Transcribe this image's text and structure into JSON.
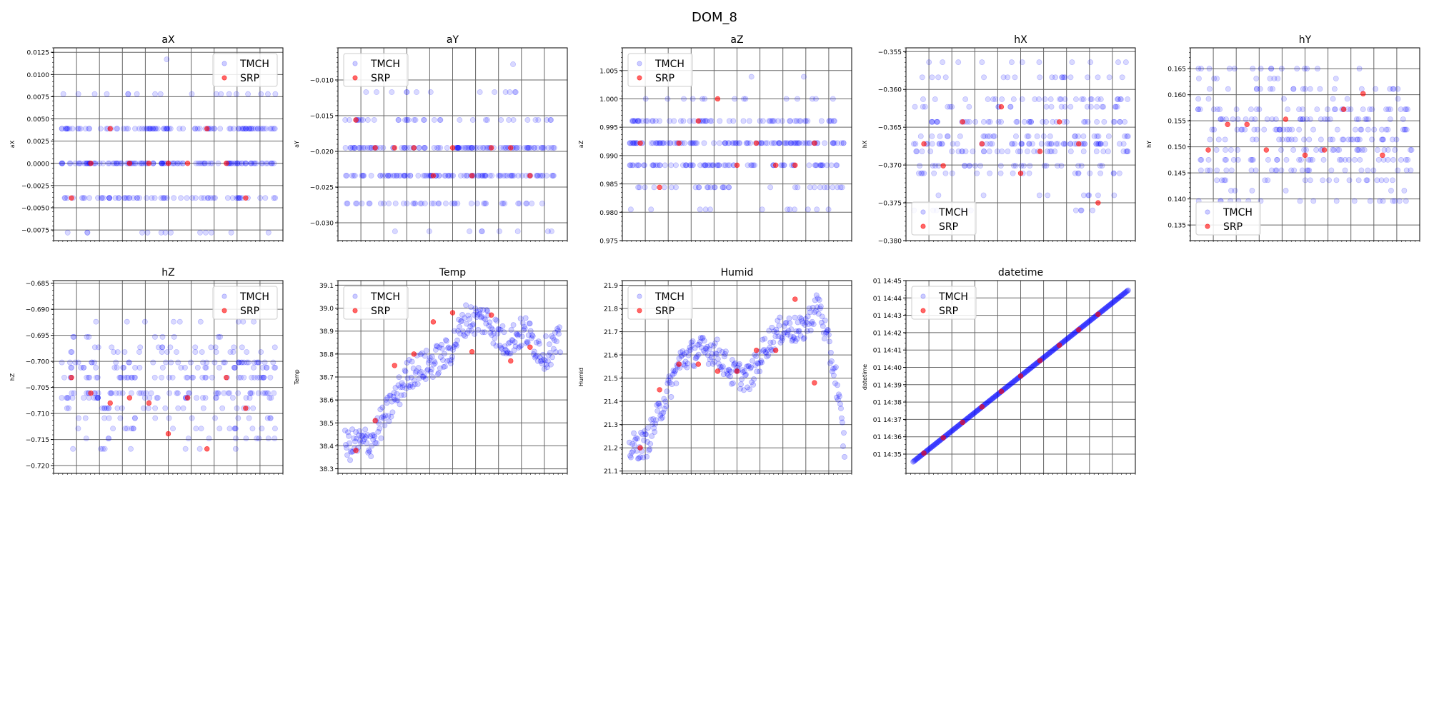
{
  "figure": {
    "title": "DOM_8",
    "legend_labels": [
      "TMCH",
      "SRP"
    ],
    "colors": {
      "tmch": "#0000ff",
      "srp": "#ff0000",
      "grid": "#666666",
      "axis": "#000000"
    }
  },
  "chart_data": [
    {
      "type": "scatter",
      "title": "aX",
      "xlabel": "",
      "ylabel": "aX",
      "ylim": [
        -0.0087,
        0.013
      ],
      "yticks": [
        "0.0125",
        "0.0100",
        "0.0075",
        "0.0050",
        "0.0025",
        "0.0000",
        "−0.0025",
        "−0.0050",
        "−0.0075"
      ],
      "ytick_values": [
        0.0125,
        0.01,
        0.0075,
        0.005,
        0.0025,
        0.0,
        -0.0025,
        -0.005,
        -0.0075
      ],
      "legend": "upper right",
      "grid": true,
      "series": [
        {
          "name": "TMCH",
          "levels": [
            0.0,
            0.0039,
            -0.0039,
            0.0078,
            -0.0078,
            0.0117
          ],
          "weights": [
            12,
            8,
            6,
            2,
            1,
            0.2
          ]
        },
        {
          "name": "SRP",
          "y": [
            -0.0039,
            0.0,
            0.0039,
            0.0,
            0.0,
            0.0,
            0.0,
            0.0039,
            0.0,
            -0.0039
          ]
        }
      ]
    },
    {
      "type": "scatter",
      "title": "aY",
      "xlabel": "",
      "ylabel": "aY",
      "ylim": [
        -0.0325,
        -0.0055
      ],
      "yticks": [
        "−0.010",
        "−0.015",
        "−0.020",
        "−0.025",
        "−0.030"
      ],
      "ytick_values": [
        -0.01,
        -0.015,
        -0.02,
        -0.025,
        -0.03
      ],
      "legend": "upper left",
      "grid": true,
      "series": [
        {
          "name": "TMCH",
          "levels": [
            -0.0195,
            -0.0234,
            -0.0156,
            -0.0273,
            -0.0117,
            -0.0312,
            -0.0078
          ],
          "weights": [
            10,
            10,
            4,
            4,
            1,
            1,
            0.2
          ]
        },
        {
          "name": "SRP",
          "y": [
            -0.0156,
            -0.0195,
            -0.0195,
            -0.0195,
            -0.0234,
            -0.0195,
            -0.0234,
            -0.0195,
            -0.0195,
            -0.0234
          ]
        }
      ]
    },
    {
      "type": "scatter",
      "title": "aZ",
      "xlabel": "",
      "ylabel": "aZ",
      "ylim": [
        0.975,
        1.009
      ],
      "yticks": [
        "1.005",
        "1.000",
        "0.995",
        "0.990",
        "0.985",
        "0.980",
        "0.975"
      ],
      "ytick_values": [
        1.005,
        1.0,
        0.995,
        0.99,
        0.985,
        0.98,
        0.975
      ],
      "legend": "upper left",
      "grid": true,
      "series": [
        {
          "name": "TMCH",
          "levels": [
            0.9922,
            0.9883,
            0.9961,
            0.9844,
            1.0,
            0.9805,
            1.0039
          ],
          "weights": [
            10,
            8,
            5,
            3,
            1,
            1,
            0.2
          ]
        },
        {
          "name": "SRP",
          "y": [
            0.9922,
            0.9844,
            0.9922,
            0.9961,
            1.0,
            0.9883,
            0.9922,
            0.9883,
            0.9883,
            0.9922
          ]
        }
      ]
    },
    {
      "type": "scatter",
      "title": "hX",
      "xlabel": "",
      "ylabel": "hX",
      "ylim": [
        -0.38,
        -0.3545
      ],
      "yticks": [
        "−0.355",
        "−0.360",
        "−0.365",
        "−0.370",
        "−0.375",
        "−0.380"
      ],
      "ytick_values": [
        -0.355,
        -0.36,
        -0.365,
        -0.37,
        -0.375,
        -0.38
      ],
      "legend": "lower left",
      "grid": true,
      "series": [
        {
          "name": "TMCH",
          "levels": [
            -0.3672,
            -0.3643,
            -0.3701,
            -0.3613,
            -0.3682,
            -0.3623,
            -0.3662,
            -0.3711,
            -0.3584,
            -0.374,
            -0.3564,
            -0.376
          ],
          "weights": [
            4,
            4,
            3,
            3,
            3,
            3,
            3,
            2,
            2,
            1,
            1,
            1
          ]
        },
        {
          "name": "SRP",
          "y": [
            -0.3672,
            -0.3701,
            -0.3643,
            -0.3672,
            -0.3623,
            -0.3711,
            -0.3682,
            -0.3643,
            -0.3672,
            -0.375
          ]
        }
      ]
    },
    {
      "type": "scatter",
      "title": "hY",
      "xlabel": "",
      "ylabel": "hY",
      "ylim": [
        0.132,
        0.169
      ],
      "yticks": [
        "0.165",
        "0.160",
        "0.155",
        "0.150",
        "0.145",
        "0.140",
        "0.135"
      ],
      "ytick_values": [
        0.165,
        0.16,
        0.155,
        0.15,
        0.145,
        0.14,
        0.135
      ],
      "legend": "lower left",
      "grid": true,
      "series": [
        {
          "name": "TMCH",
          "levels": [
            0.1514,
            0.1494,
            0.1533,
            0.1553,
            0.1475,
            0.1572,
            0.1455,
            0.1592,
            0.1436,
            0.1611,
            0.1416,
            0.1631,
            0.1396,
            0.165
          ],
          "weights": [
            4,
            4,
            4,
            3,
            3,
            3,
            2,
            2,
            2,
            2,
            1,
            1,
            1,
            1
          ]
        },
        {
          "name": "SRP",
          "y": [
            0.1494,
            0.1543,
            0.1543,
            0.1494,
            0.1553,
            0.1484,
            0.1494,
            0.1572,
            0.1602,
            0.1484
          ]
        }
      ]
    },
    {
      "type": "scatter",
      "title": "hZ",
      "xlabel": "",
      "ylabel": "hZ",
      "ylim": [
        -0.7215,
        -0.6845
      ],
      "yticks": [
        "−0.685",
        "−0.690",
        "−0.695",
        "−0.700",
        "−0.705",
        "−0.710",
        "−0.715",
        "−0.720"
      ],
      "ytick_values": [
        -0.685,
        -0.69,
        -0.695,
        -0.7,
        -0.705,
        -0.71,
        -0.715,
        -0.72
      ],
      "legend": "upper right",
      "grid": true,
      "series": [
        {
          "name": "TMCH",
          "levels": [
            -0.7031,
            -0.7061,
            -0.7002,
            -0.709,
            -0.7012,
            -0.707,
            -0.6982,
            -0.7109,
            -0.6973,
            -0.7129,
            -0.6953,
            -0.7148,
            -0.6924,
            -0.7168
          ],
          "weights": [
            4,
            4,
            3,
            3,
            3,
            3,
            2,
            2,
            2,
            2,
            1,
            1,
            1,
            1
          ]
        },
        {
          "name": "SRP",
          "y": [
            -0.7031,
            -0.7061,
            -0.708,
            -0.707,
            -0.708,
            -0.7139,
            -0.707,
            -0.7168,
            -0.7031,
            -0.709
          ]
        }
      ]
    },
    {
      "type": "scatter",
      "title": "Temp",
      "xlabel": "",
      "ylabel": "Temp",
      "ylim": [
        38.28,
        39.12
      ],
      "yticks": [
        "39.1",
        "39.0",
        "38.9",
        "38.8",
        "38.7",
        "38.6",
        "38.5",
        "38.4",
        "38.3"
      ],
      "ytick_values": [
        39.1,
        39.0,
        38.9,
        38.8,
        38.7,
        38.6,
        38.5,
        38.4,
        38.3
      ],
      "legend": "upper left",
      "grid": true,
      "series": [
        {
          "name": "TMCH",
          "x": [
            0,
            12,
            20,
            30,
            38,
            48,
            56,
            66,
            74,
            84,
            92,
            100
          ],
          "y": [
            38.4,
            38.42,
            38.55,
            38.72,
            38.75,
            38.8,
            38.95,
            38.95,
            38.85,
            38.9,
            38.8,
            38.85
          ],
          "spread": 0.07
        },
        {
          "name": "SRP",
          "x": [
            5,
            14,
            23,
            32,
            41,
            50,
            59,
            68,
            77,
            86
          ],
          "y": [
            38.38,
            38.51,
            38.75,
            38.8,
            38.94,
            38.98,
            38.81,
            38.97,
            38.77,
            38.83
          ]
        }
      ]
    },
    {
      "type": "scatter",
      "title": "Humid",
      "xlabel": "",
      "ylabel": "Humid",
      "ylim": [
        21.09,
        21.92
      ],
      "yticks": [
        "21.9",
        "21.8",
        "21.7",
        "21.6",
        "21.5",
        "21.4",
        "21.3",
        "21.2",
        "21.1"
      ],
      "ytick_values": [
        21.9,
        21.8,
        21.7,
        21.6,
        21.5,
        21.4,
        21.3,
        21.2,
        21.1
      ],
      "legend": "upper left",
      "grid": true,
      "series": [
        {
          "name": "TMCH",
          "x": [
            0,
            8,
            16,
            24,
            32,
            40,
            48,
            56,
            64,
            72,
            80,
            88,
            96,
            100
          ],
          "y": [
            21.2,
            21.22,
            21.4,
            21.58,
            21.62,
            21.62,
            21.52,
            21.5,
            21.65,
            21.72,
            21.7,
            21.82,
            21.5,
            21.2
          ],
          "spread": 0.06
        },
        {
          "name": "SRP",
          "x": [
            5,
            14,
            23,
            32,
            41,
            50,
            59,
            68,
            77,
            86
          ],
          "y": [
            21.2,
            21.45,
            21.56,
            21.56,
            21.53,
            21.53,
            21.62,
            21.62,
            21.84,
            21.48
          ]
        }
      ]
    },
    {
      "type": "scatter",
      "title": "datetime",
      "xlabel": "",
      "ylabel": "datetime",
      "ylim": [
        0,
        100
      ],
      "yticks": [
        "01 14:45",
        "01 14:44",
        "01 14:43",
        "01 14:42",
        "01 14:41",
        "01 14:40",
        "01 14:39",
        "01 14:38",
        "01 14:37",
        "01 14:36",
        "01 14:35"
      ],
      "ytick_values": [
        100,
        91,
        82,
        73,
        64,
        55,
        46,
        37,
        28,
        19,
        10
      ],
      "legend": "upper left",
      "grid": true,
      "series": [
        {
          "name": "TMCH",
          "x": [
            0,
            100
          ],
          "y": [
            6,
            95
          ],
          "spread": 0
        },
        {
          "name": "SRP",
          "x": [
            5,
            14,
            23,
            32,
            41,
            50,
            59,
            68,
            77,
            86
          ],
          "y": [
            10.5,
            18.5,
            26.5,
            34.5,
            42.5,
            50.5,
            58.5,
            66.5,
            74.5,
            82.5
          ]
        }
      ]
    }
  ]
}
